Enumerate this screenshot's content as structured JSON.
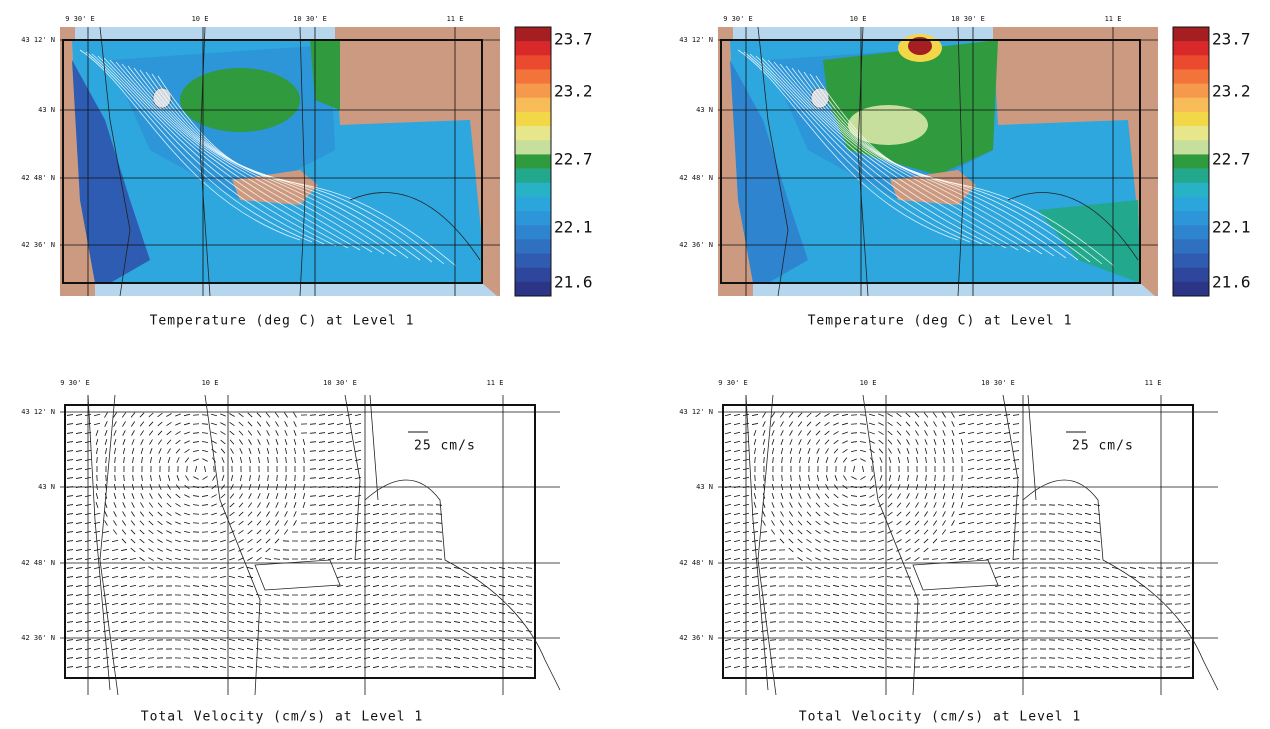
{
  "panels": [
    {
      "kind": "temperature",
      "title": "Temperature (deg C) at Level 1",
      "lon_labels": [
        "9 30' E",
        "10 E",
        "10 30' E",
        "11 E"
      ],
      "lat_labels": [
        "43 12' N",
        "43 N",
        "42 48' N",
        "42 36' N"
      ],
      "colorbar": {
        "labels": [
          23.7,
          23.2,
          22.7,
          22.1,
          21.6
        ],
        "colors": [
          "#a41e22",
          "#d8282a",
          "#ec4a2e",
          "#f2743a",
          "#f59a4c",
          "#f7bc58",
          "#f2d848",
          "#e8e68a",
          "#c7df9c",
          "#2f9b3e",
          "#22a88c",
          "#28b2c6",
          "#2aa6dc",
          "#2d96d8",
          "#2f84cf",
          "#2f70c0",
          "#2f5cb0",
          "#2e469c",
          "#2c3486"
        ]
      }
    },
    {
      "kind": "temperature",
      "title": "Temperature (deg C) at Level 1",
      "lon_labels": [
        "9 30' E",
        "10 E",
        "10 30' E",
        "11 E"
      ],
      "lat_labels": [
        "43 12' N",
        "43 N",
        "42 48' N",
        "42 36' N"
      ],
      "colorbar": {
        "labels": [
          23.7,
          23.2,
          22.7,
          22.1,
          21.6
        ],
        "colors": [
          "#a41e22",
          "#d8282a",
          "#ec4a2e",
          "#f2743a",
          "#f59a4c",
          "#f7bc58",
          "#f2d848",
          "#e8e68a",
          "#c7df9c",
          "#2f9b3e",
          "#22a88c",
          "#28b2c6",
          "#2aa6dc",
          "#2d96d8",
          "#2f84cf",
          "#2f70c0",
          "#2f5cb0",
          "#2e469c",
          "#2c3486"
        ]
      }
    },
    {
      "kind": "velocity",
      "title": "Total Velocity (cm/s) at Level 1",
      "lon_labels": [
        "9 30' E",
        "10 E",
        "10 30' E",
        "11 E"
      ],
      "lat_labels": [
        "43 12' N",
        "43 N",
        "42 48' N",
        "42 36' N"
      ],
      "scale_label": "25 cm/s"
    },
    {
      "kind": "velocity",
      "title": "Total Velocity (cm/s) at Level 1",
      "lon_labels": [
        "9 30' E",
        "10 E",
        "10 30' E",
        "11 E"
      ],
      "lat_labels": [
        "43 12' N",
        "43 N",
        "42 48' N",
        "42 36' N"
      ],
      "scale_label": "25 cm/s"
    }
  ]
}
